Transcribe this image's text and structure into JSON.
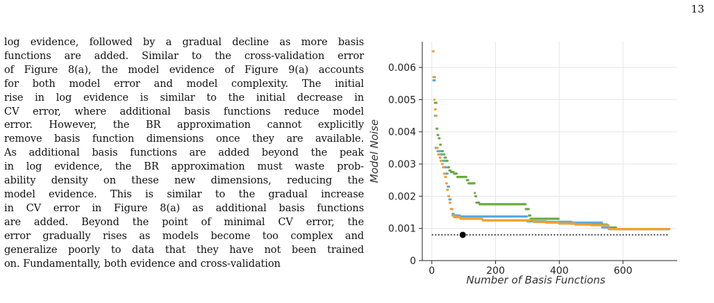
{
  "page_number": "13",
  "paragraph_lines": [
    "log evidence, followed by a gradual decline as more basis",
    "functions are added. Similar to the cross-validation error",
    "of Figure 8(a), the model evidence of Figure 9(a) accounts",
    "for both model error and model complexity. The initial",
    "rise in log evidence is similar to the initial decrease in",
    "CV error, where additional basis functions reduce model",
    "error. However, the BR approximation cannot explicitly",
    "remove basis function dimensions once they are available.",
    "As additional basis functions are added beyond the peak",
    "in log evidence, the BR approximation must waste prob-",
    "ability density on these new dimensions, reducing the",
    "model evidence. This is similar to the gradual increase",
    "in CV error in Figure 8(a) as additional basis functions",
    "are added. Beyond the point of minimal CV error, the",
    "error gradually rises as models become too complex and",
    "generalize poorly to data that they have not been trained",
    "on. Fundamentally, both evidence and cross-validation"
  ],
  "chart_data": {
    "type": "scatter",
    "title": "",
    "xlabel": "Number of Basis Functions",
    "ylabel": "Model Noise",
    "xlim": [
      -30,
      770
    ],
    "ylim": [
      0,
      0.0068
    ],
    "x_ticks": [
      0,
      200,
      400,
      600
    ],
    "x_tick_labels": [
      "0",
      "200",
      "400",
      "600"
    ],
    "y_ticks": [
      0,
      0.001,
      0.002,
      0.003,
      0.004,
      0.005,
      0.006
    ],
    "y_tick_labels": [
      "0",
      "0.001",
      "0.002",
      "0.003",
      "0.004",
      "0.005",
      "0.006"
    ],
    "grid": true,
    "colors": {
      "orange": "#f0a030",
      "blue": "#5aaae0",
      "green": "#6aaa40",
      "reference": "#000000"
    },
    "series": [
      {
        "color_key": "green",
        "points": [
          [
            5,
            0.0057
          ],
          [
            10,
            0.0049
          ],
          [
            15,
            0.0041
          ],
          [
            18,
            0.0039
          ],
          [
            22,
            0.0038
          ],
          [
            26,
            0.0036
          ],
          [
            30,
            0.0034
          ],
          [
            35,
            0.0033
          ],
          [
            40,
            0.0032
          ],
          [
            45,
            0.0031
          ],
          [
            50,
            0.0029
          ],
          [
            55,
            0.0028
          ],
          [
            60,
            0.00275
          ],
          [
            70,
            0.0027
          ],
          [
            80,
            0.0026
          ],
          [
            100,
            0.0026
          ],
          [
            110,
            0.0025
          ],
          [
            115,
            0.0024
          ],
          [
            130,
            0.0024
          ],
          [
            135,
            0.0021
          ],
          [
            137,
            0.002
          ],
          [
            140,
            0.0018
          ],
          [
            150,
            0.00175
          ],
          [
            200,
            0.00175
          ],
          [
            250,
            0.00175
          ],
          [
            290,
            0.00175
          ],
          [
            295,
            0.0016
          ],
          [
            300,
            0.0016
          ],
          [
            305,
            0.0014
          ],
          [
            310,
            0.0013
          ],
          [
            330,
            0.0013
          ],
          [
            360,
            0.0013
          ],
          [
            400,
            0.0012
          ],
          [
            440,
            0.00115
          ],
          [
            480,
            0.00115
          ],
          [
            520,
            0.00112
          ],
          [
            545,
            0.00112
          ],
          [
            550,
            0.00103
          ],
          [
            580,
            0.00098
          ],
          [
            620,
            0.00098
          ],
          [
            680,
            0.00098
          ],
          [
            745,
            0.00098
          ]
        ]
      },
      {
        "color_key": "blue",
        "points": [
          [
            5,
            0.0056
          ],
          [
            10,
            0.0045
          ],
          [
            12,
            0.0035
          ],
          [
            18,
            0.0034
          ],
          [
            25,
            0.0033
          ],
          [
            30,
            0.0033
          ],
          [
            35,
            0.0031
          ],
          [
            40,
            0.0029
          ],
          [
            45,
            0.0027
          ],
          [
            50,
            0.0023
          ],
          [
            55,
            0.0019
          ],
          [
            60,
            0.0016
          ],
          [
            65,
            0.00145
          ],
          [
            70,
            0.0014
          ],
          [
            90,
            0.00137
          ],
          [
            120,
            0.00137
          ],
          [
            160,
            0.00137
          ],
          [
            200,
            0.00137
          ],
          [
            240,
            0.00137
          ],
          [
            290,
            0.00137
          ],
          [
            300,
            0.00122
          ],
          [
            320,
            0.00122
          ],
          [
            360,
            0.0012
          ],
          [
            400,
            0.0012
          ],
          [
            440,
            0.00118
          ],
          [
            480,
            0.00118
          ],
          [
            530,
            0.00118
          ],
          [
            535,
            0.00103
          ],
          [
            560,
            0.00098
          ],
          [
            600,
            0.00098
          ],
          [
            650,
            0.00098
          ],
          [
            700,
            0.00098
          ],
          [
            745,
            0.00098
          ]
        ]
      },
      {
        "color_key": "orange",
        "points": [
          [
            3,
            0.0065
          ],
          [
            6,
            0.0057
          ],
          [
            8,
            0.005
          ],
          [
            10,
            0.0047
          ],
          [
            13,
            0.0045
          ],
          [
            16,
            0.0035
          ],
          [
            20,
            0.0033
          ],
          [
            25,
            0.0032
          ],
          [
            28,
            0.0031
          ],
          [
            32,
            0.003
          ],
          [
            35,
            0.0029
          ],
          [
            38,
            0.0027
          ],
          [
            42,
            0.0026
          ],
          [
            45,
            0.0024
          ],
          [
            48,
            0.0022
          ],
          [
            52,
            0.002
          ],
          [
            56,
            0.0018
          ],
          [
            60,
            0.0016
          ],
          [
            65,
            0.0014
          ],
          [
            70,
            0.00135
          ],
          [
            90,
            0.0013
          ],
          [
            120,
            0.0013
          ],
          [
            160,
            0.00125
          ],
          [
            200,
            0.00125
          ],
          [
            250,
            0.00125
          ],
          [
            290,
            0.00125
          ],
          [
            320,
            0.0012
          ],
          [
            360,
            0.00118
          ],
          [
            400,
            0.00115
          ],
          [
            450,
            0.00112
          ],
          [
            500,
            0.0011
          ],
          [
            540,
            0.0011
          ],
          [
            555,
            0.00098
          ],
          [
            600,
            0.00098
          ],
          [
            650,
            0.00098
          ],
          [
            700,
            0.00098
          ],
          [
            745,
            0.00098
          ]
        ]
      }
    ],
    "reference_line": {
      "y": 0.0008,
      "x_start": 0,
      "x_end": 740,
      "style": "dotted"
    },
    "marker": {
      "x": 97,
      "y": 0.0008
    }
  }
}
